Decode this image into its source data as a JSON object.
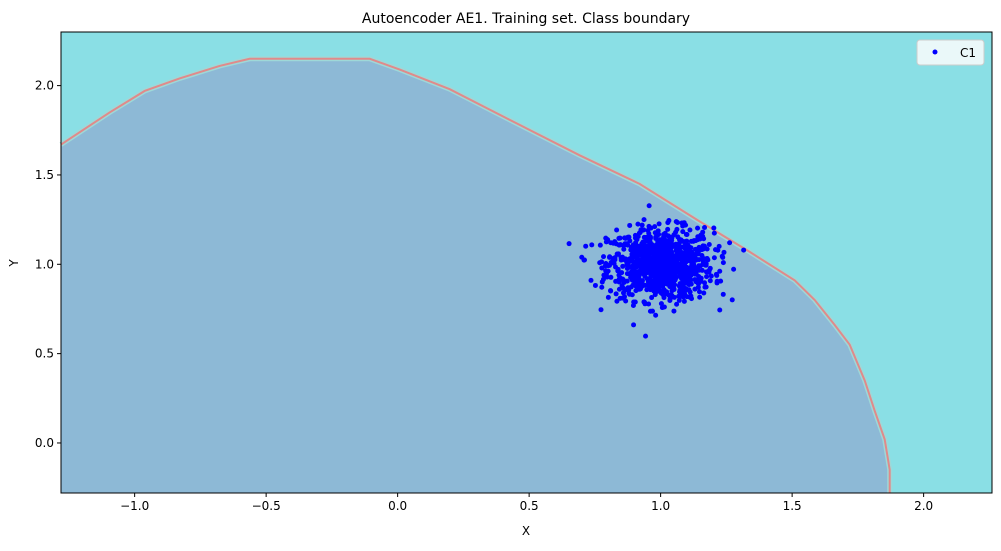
{
  "chart_data": {
    "type": "scatter",
    "title": "Autoencoder AE1. Training set. Class boundary",
    "xlabel": "X",
    "ylabel": "Y",
    "xlim": [
      -1.28,
      2.26
    ],
    "ylim": [
      -0.28,
      2.3
    ],
    "xticks": [
      -1.0,
      -0.5,
      0.0,
      0.5,
      1.0,
      1.5,
      2.0
    ],
    "xtick_labels": [
      "−1.0",
      "−0.5",
      "0.0",
      "0.5",
      "1.0",
      "1.5",
      "2.0"
    ],
    "yticks": [
      0.0,
      0.5,
      1.0,
      1.5,
      2.0
    ],
    "ytick_labels": [
      "0.0",
      "0.5",
      "1.0",
      "1.5",
      "2.0"
    ],
    "grid": false,
    "legend": {
      "placement": "top-right",
      "entries": [
        "C1"
      ]
    },
    "colors": {
      "inside_region": "#8db9d6",
      "outside_region": "#8adfe5",
      "boundary": "#e08a8a",
      "points": "#0000ff"
    },
    "boundary": [
      [
        -1.28,
        1.67
      ],
      [
        -1.095,
        1.85
      ],
      [
        -0.962,
        1.97
      ],
      [
        -0.829,
        2.04
      ],
      [
        -0.677,
        2.11
      ],
      [
        -0.563,
        2.15
      ],
      [
        -0.106,
        2.15
      ],
      [
        0.008,
        2.09
      ],
      [
        0.198,
        1.98
      ],
      [
        0.464,
        1.78
      ],
      [
        0.692,
        1.61
      ],
      [
        0.92,
        1.45
      ],
      [
        1.148,
        1.24
      ],
      [
        1.338,
        1.07
      ],
      [
        1.51,
        0.91
      ],
      [
        1.586,
        0.8
      ],
      [
        1.662,
        0.66
      ],
      [
        1.719,
        0.55
      ],
      [
        1.776,
        0.35
      ],
      [
        1.814,
        0.18
      ],
      [
        1.852,
        0.02
      ],
      [
        1.871,
        -0.15
      ],
      [
        1.871,
        -0.28
      ]
    ],
    "series": [
      {
        "name": "C1",
        "distribution": "gaussian",
        "center": [
          1.0,
          1.0
        ],
        "std": [
          0.1,
          0.1
        ],
        "count": 1000
      }
    ]
  }
}
